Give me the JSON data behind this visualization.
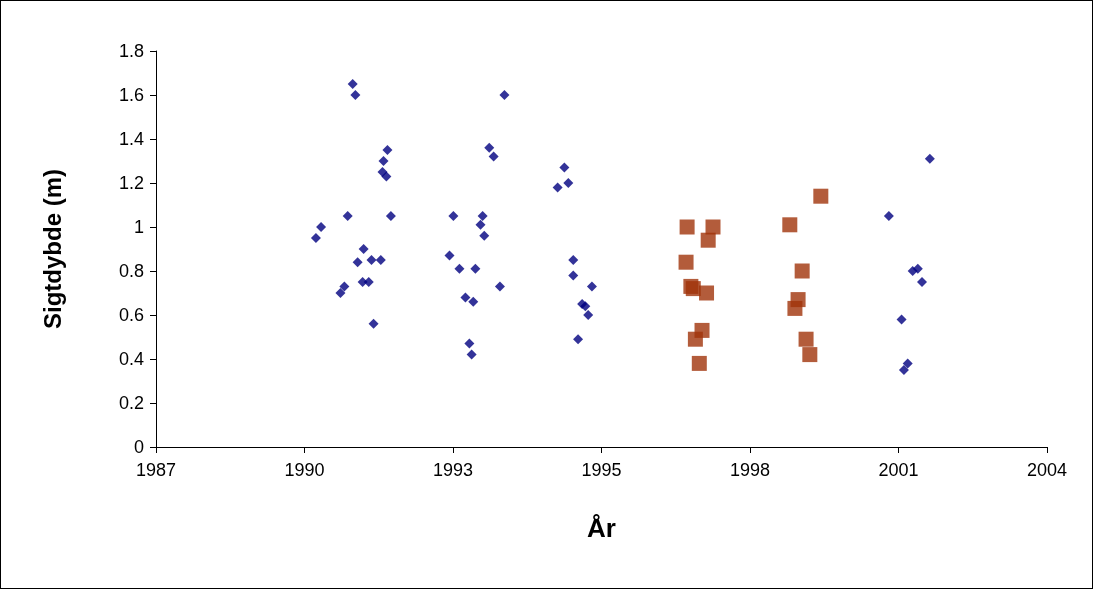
{
  "chart_data": {
    "type": "scatter",
    "xlabel": "År",
    "ylabel": "Sigtdybde (m)",
    "xlim": [
      "1987-11-07",
      "2004-01-19"
    ],
    "xticks": [
      {
        "value": "1987-11-07",
        "label": "1987"
      },
      {
        "value": "1990-07-20",
        "label": "1990"
      },
      {
        "value": "1993-04-01",
        "label": "1993"
      },
      {
        "value": "1995-12-13",
        "label": "1995"
      },
      {
        "value": "1998-08-25",
        "label": "1998"
      },
      {
        "value": "2001-05-08",
        "label": "2001"
      },
      {
        "value": "2004-01-19",
        "label": "2004"
      }
    ],
    "ylim": [
      0,
      1.8
    ],
    "yticks": [
      0,
      0.2,
      0.4,
      0.6,
      0.8,
      1,
      1.2,
      1.4,
      1.6,
      1.8
    ],
    "grid": false,
    "series": [
      {
        "color": "#000080",
        "marker": "diamond",
        "x": [
          "1990-10-04",
          "1990-11-07",
          "1991-05-03",
          "1991-06-05",
          "1991-06-23",
          "1991-03-16",
          "1991-04-11",
          "1991-07-08",
          "1991-08-17",
          "1991-08-10",
          "1991-09-20",
          "1991-10-08",
          "1991-12-09",
          "1991-10-22",
          "1991-12-27",
          "1992-01-22",
          "1991-12-20",
          "1992-01-15",
          "1992-02-14",
          "1993-03-09",
          "1993-04-04",
          "1993-05-14",
          "1993-06-23",
          "1993-08-14",
          "1993-07-19",
          "1993-08-03",
          "1993-08-28",
          "1993-10-01",
          "1993-10-15",
          "1993-10-26",
          "1993-11-28",
          "1993-12-27",
          "1994-02-07",
          "1994-03-09",
          "1995-02-25",
          "1995-04-11",
          "1995-05-07",
          "1995-06-09",
          "1995-06-09",
          "1995-07-11",
          "1995-08-07",
          "1995-08-28",
          "1995-09-16",
          "1995-10-11",
          "2001-03-05",
          "2001-05-28",
          "2001-06-13",
          "2001-07-08",
          "2001-08-10",
          "2001-09-13",
          "2001-10-11",
          "2001-12-02"
        ],
        "values": [
          0.95,
          1.0,
          1.05,
          1.65,
          1.6,
          0.7,
          0.73,
          0.84,
          0.9,
          0.75,
          0.75,
          0.85,
          0.85,
          0.56,
          1.3,
          1.35,
          1.25,
          1.23,
          1.05,
          0.87,
          1.05,
          0.81,
          0.68,
          0.66,
          0.47,
          0.42,
          0.81,
          1.01,
          1.05,
          0.96,
          1.36,
          1.32,
          0.73,
          1.6,
          1.18,
          1.27,
          1.2,
          0.85,
          0.78,
          0.49,
          0.65,
          0.64,
          0.6,
          0.73,
          1.05,
          0.58,
          0.35,
          0.38,
          0.8,
          0.81,
          0.75,
          1.31
        ]
      },
      {
        "color": "#a0330a",
        "marker": "square",
        "x": [
          "1997-07-04",
          "1997-06-27",
          "1997-07-29",
          "1997-08-14",
          "1997-08-28",
          "1997-09-23",
          "1997-10-11",
          "1997-11-10",
          "1997-11-21",
          "1997-12-23",
          "1999-05-17",
          "1999-06-20",
          "1999-07-11",
          "1999-08-07",
          "1999-09-02",
          "1999-09-27",
          "1999-12-09"
        ],
        "values": [
          1.0,
          0.84,
          0.73,
          0.72,
          0.49,
          0.38,
          0.53,
          0.7,
          0.94,
          1.0,
          1.01,
          0.63,
          0.67,
          0.8,
          0.49,
          0.42,
          1.14
        ]
      }
    ]
  }
}
